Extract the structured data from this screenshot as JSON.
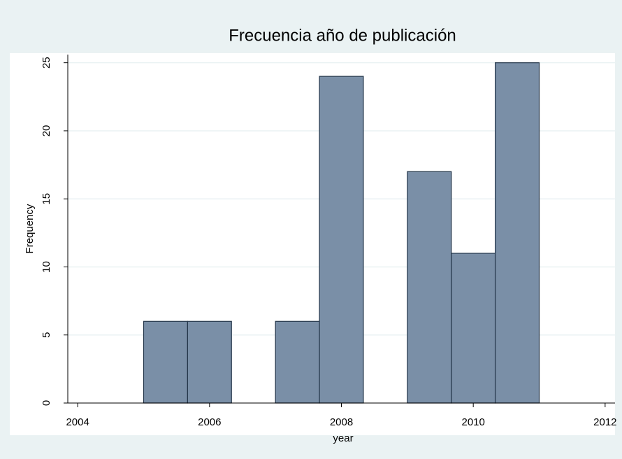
{
  "chart_data": {
    "type": "histogram",
    "title": "Frecuencia año de publicación",
    "x_label": "year",
    "y_label": "Frequency",
    "bins": [
      2005,
      2005.667,
      2006.333,
      2007,
      2007.667,
      2008.333,
      2009,
      2009.667,
      2010.333,
      2011
    ],
    "values": [
      6,
      6,
      0,
      6,
      24,
      0,
      17,
      11,
      25
    ],
    "color": "#7a8fa7",
    "xlim": [
      2003.85,
      2012.15
    ],
    "xticks": [
      2004,
      2006,
      2008,
      2010,
      2012
    ],
    "ylim": [
      0,
      25.6
    ],
    "yticks": [
      0,
      5,
      10,
      15,
      20,
      25
    ],
    "grid": true
  }
}
